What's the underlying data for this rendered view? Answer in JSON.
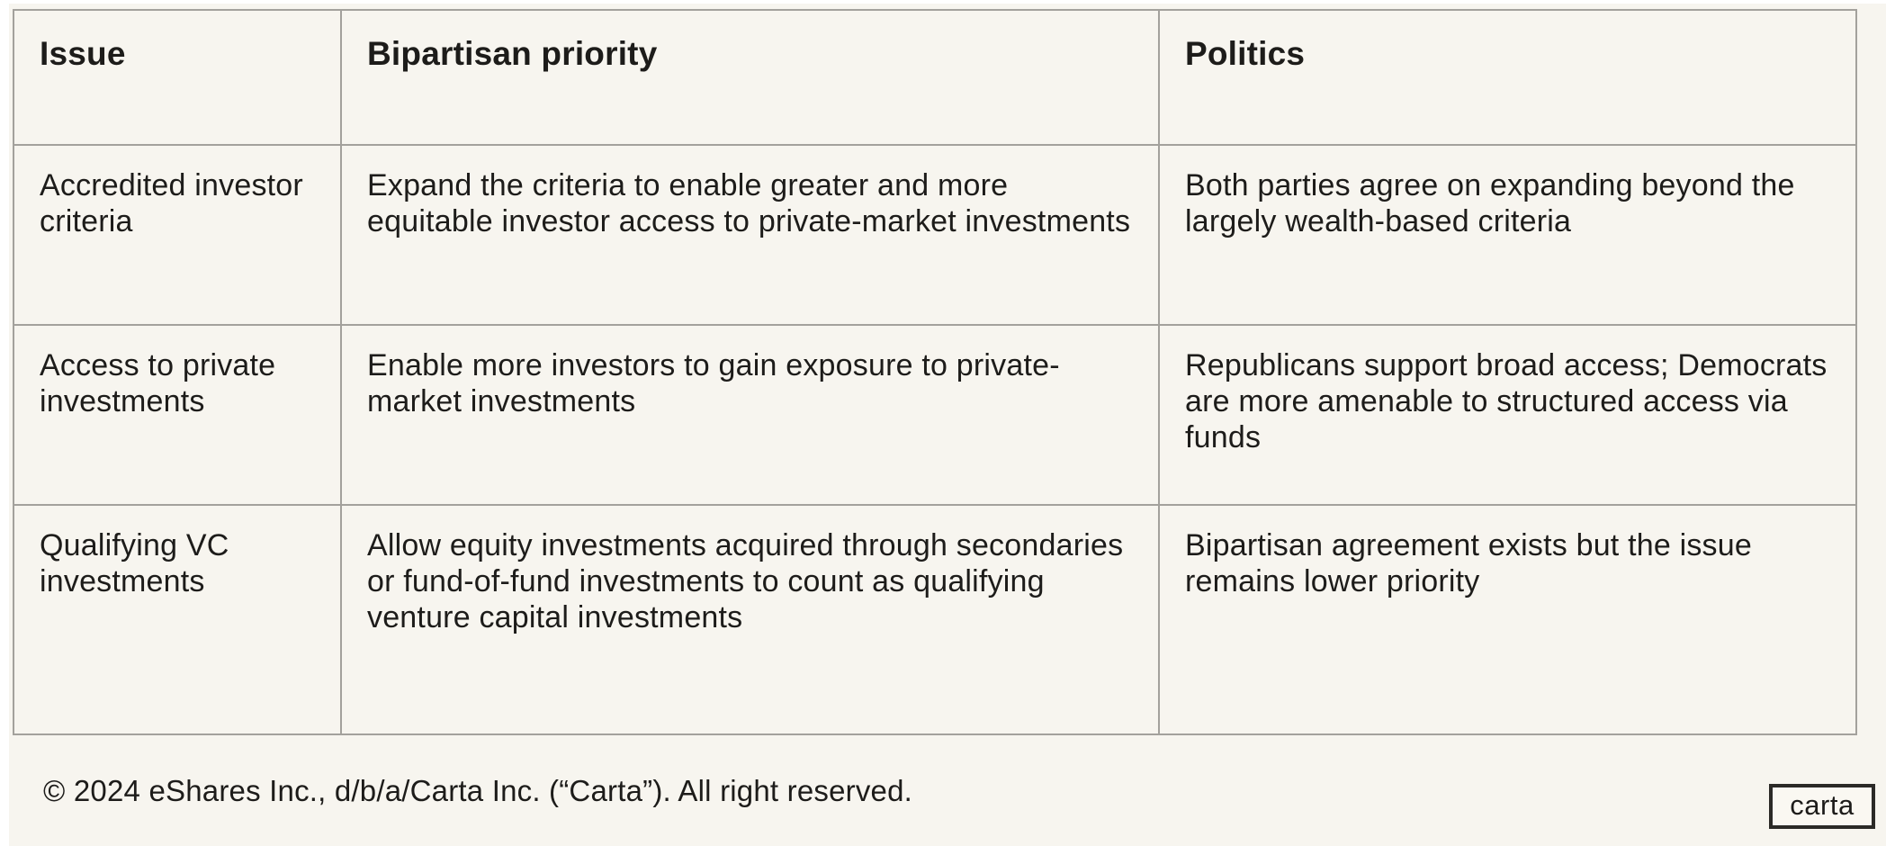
{
  "colors": {
    "background": "#f7f5ef",
    "page_margin": "#ffffff",
    "table_border": "#a3a19c",
    "text": "#1d1c1a"
  },
  "table": {
    "columns": [
      {
        "label": "Issue"
      },
      {
        "label": "Bipartisan priority"
      },
      {
        "label": "Politics"
      }
    ],
    "rows": [
      {
        "issue": "Accredited investor criteria",
        "priority": "Expand the criteria to enable greater and more equitable investor access to private-market investments",
        "politics": "Both parties agree on expanding beyond the largely wealth-based criteria"
      },
      {
        "issue": "Access to private investments",
        "priority": "Enable more investors to gain exposure to private-market investments",
        "politics": "Republicans support broad access; Democrats are more amenable to structured access via funds"
      },
      {
        "issue": "Qualifying VC investments",
        "priority": "Allow equity investments acquired through secondaries or fund-of-fund investments to count as qualifying venture capital investments",
        "politics": "Bipartisan agreement exists but the issue remains lower priority"
      }
    ]
  },
  "footer": {
    "copyright": "© 2024 eShares Inc., d/b/a/Carta Inc. (“Carta”). All right reserved.",
    "logo_text": "carta"
  }
}
